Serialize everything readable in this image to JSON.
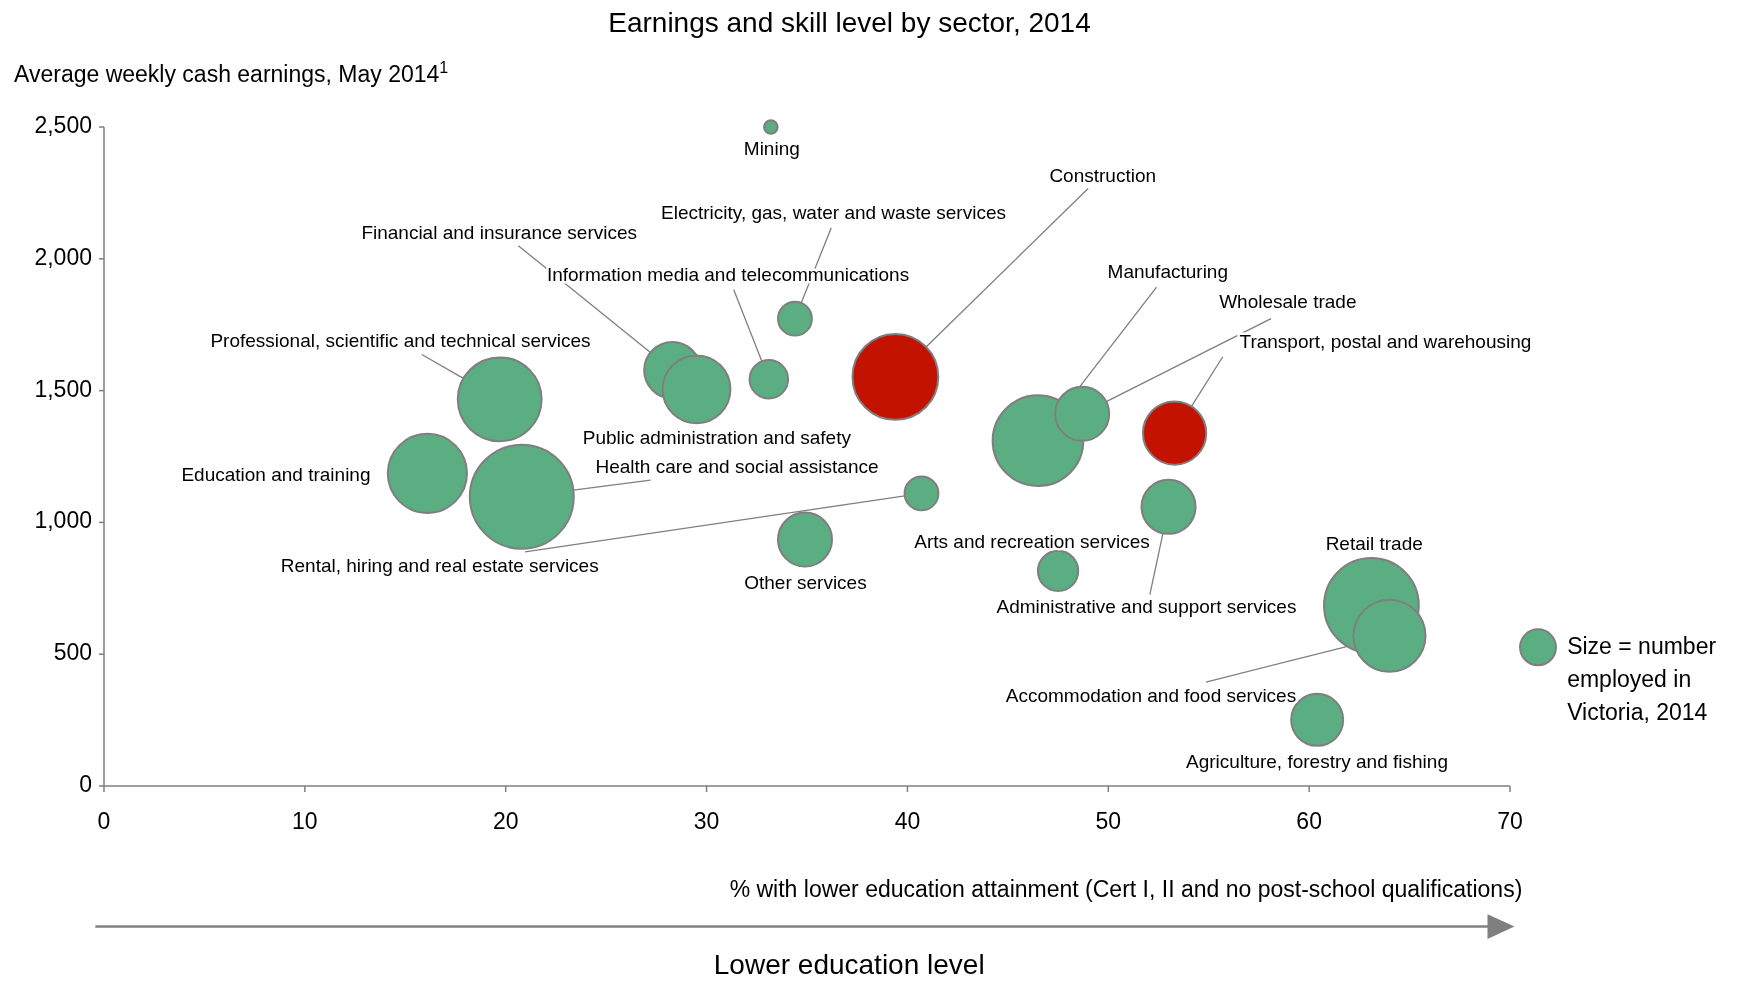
{
  "chart_data": {
    "type": "bubble",
    "title": "Earnings and skill level by sector, 2014",
    "ylabel": "Average weekly cash earnings, May 2014$^{1}$",
    "xlabel": "% with lower education attainment (Cert I, II and no post-school qualifications)",
    "xlim": [
      0,
      70
    ],
    "xticks": [
      0,
      10,
      20,
      30,
      40,
      50,
      60,
      70
    ],
    "ylim": [
      0,
      2500
    ],
    "yticks": [
      0,
      500,
      {
        "value": 1000,
        "label": "1,000"
      },
      {
        "value": 1500,
        "label": "1,500"
      },
      {
        "value": 2000,
        "label": "2,000"
      },
      {
        "value": 2500,
        "label": "2,500"
      }
    ],
    "grid": false,
    "series": [
      {
        "name": "Mining",
        "color": "#5bae82",
        "x": [
          33.2
        ],
        "values": [
          2500
        ],
        "sizes": [
          0.017
        ]
      },
      {
        "name": "Electricity, gas, water and waste services",
        "color": "#5bae82",
        "x": [
          34.4
        ],
        "values": [
          1773
        ],
        "sizes": [
          0.106
        ]
      },
      {
        "name": "Financial and insurance services",
        "color": "#5bae82",
        "x": [
          28.3
        ],
        "values": [
          1577
        ],
        "sizes": [
          0.295
        ]
      },
      {
        "name": "Public administration and safety",
        "color": "#5bae82",
        "x": [
          29.5
        ],
        "values": [
          1505
        ],
        "sizes": [
          0.425
        ]
      },
      {
        "name": "Information media and telecommunications",
        "color": "#5bae82",
        "x": [
          33.1
        ],
        "values": [
          1543
        ],
        "sizes": [
          0.137
        ]
      },
      {
        "name": "Construction",
        "color": "#c41200",
        "x": [
          39.4
        ],
        "values": [
          1552
        ],
        "sizes": [
          0.68
        ]
      },
      {
        "name": "Professional, scientific and technical services",
        "color": "#5bae82",
        "x": [
          19.7
        ],
        "values": [
          1467
        ],
        "sizes": [
          0.65
        ]
      },
      {
        "name": "Education and training",
        "color": "#5bae82",
        "x": [
          16.1
        ],
        "values": [
          1186
        ],
        "sizes": [
          0.58
        ]
      },
      {
        "name": "Health care and social assistance",
        "color": "#5bae82",
        "x": [
          20.8
        ],
        "values": [
          1097
        ],
        "sizes": [
          1
        ]
      },
      {
        "name": "Rental, hiring and real estate services",
        "color": "#5bae82",
        "x": [
          40.7
        ],
        "values": [
          1110
        ],
        "sizes": [
          0.106
        ]
      },
      {
        "name": "Other services",
        "color": "#5bae82",
        "x": [
          34.9
        ],
        "values": [
          935
        ],
        "sizes": [
          0.27
        ]
      },
      {
        "name": "Manufacturing",
        "color": "#5bae82",
        "x": [
          46.5
        ],
        "values": [
          1310
        ],
        "sizes": [
          0.76
        ]
      },
      {
        "name": "Wholesale trade",
        "color": "#5bae82",
        "x": [
          48.7
        ],
        "values": [
          1412
        ],
        "sizes": [
          0.27
        ]
      },
      {
        "name": "Transport, postal and warehousing",
        "color": "#c41200",
        "x": [
          53.3
        ],
        "values": [
          1339
        ],
        "sizes": [
          0.37
        ]
      },
      {
        "name": "Administrative and support services",
        "color": "#5bae82",
        "x": [
          53.0
        ],
        "values": [
          1059
        ],
        "sizes": [
          0.27
        ]
      },
      {
        "name": "Arts and recreation services",
        "color": "#5bae82",
        "x": [
          47.5
        ],
        "values": [
          816
        ],
        "sizes": [
          0.15
        ]
      },
      {
        "name": "Retail trade",
        "color": "#5bae82",
        "x": [
          63.1
        ],
        "values": [
          685
        ],
        "sizes": [
          0.83
        ]
      },
      {
        "name": "Accommodation and food services",
        "color": "#5bae82",
        "x": [
          64.0
        ],
        "values": [
          570
        ],
        "sizes": [
          0.48
        ]
      },
      {
        "name": "Agriculture, forestry and fishing",
        "color": "#5bae82",
        "x": [
          60.4
        ],
        "values": [
          251
        ],
        "sizes": [
          0.25
        ]
      }
    ],
    "annotations": [
      "Size = number employed in Victoria, 2014",
      "Lower education level"
    ]
  }
}
